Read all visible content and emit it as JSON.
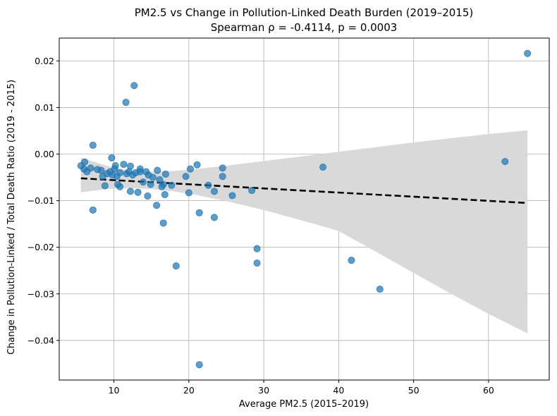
{
  "chart_data": {
    "type": "scatter",
    "title": "PM2.5 vs Change in Pollution-Linked Death Burden (2019–2015)",
    "subtitle": "Spearman ρ = -0.4114, p = 0.0003",
    "xlabel": "Average PM2.5 (2015–2019)",
    "ylabel": "Change in Pollution-Linked / Total Death Ratio (2019 - 2015)",
    "xlim": [
      2.7,
      68.1
    ],
    "ylim": [
      -0.0485,
      0.0249
    ],
    "x_ticks": [
      10,
      20,
      30,
      40,
      50,
      60
    ],
    "y_ticks": [
      0.02,
      0.01,
      0.0,
      -0.01,
      -0.02,
      -0.03,
      -0.04
    ],
    "x_tick_labels": [
      "10",
      "20",
      "30",
      "40",
      "50",
      "60"
    ],
    "y_tick_labels": [
      "0.02",
      "0.01",
      "0.00",
      "−0.01",
      "−0.02",
      "−0.03",
      "−0.04"
    ],
    "grid": true,
    "colors": {
      "points": "#1f77b4",
      "trend_line": "#000000",
      "confidence_band": "#d9d9d9",
      "grid": "#b0b0b0"
    },
    "trend_line": {
      "style": "dashed",
      "x": [
        5.6,
        65.2
      ],
      "y": [
        -0.0052,
        -0.0105
      ]
    },
    "confidence_band": {
      "x": [
        5.6,
        9.0,
        12.0,
        15.0,
        18.0,
        21.0,
        25.0,
        30.0,
        35.0,
        40.0,
        45.0,
        50.0,
        55.0,
        60.0,
        65.2
      ],
      "upper": [
        -0.0008,
        -0.0025,
        -0.0035,
        -0.0038,
        -0.0036,
        -0.0032,
        -0.0025,
        -0.0015,
        -0.0005,
        0.0005,
        0.0015,
        0.0025,
        0.0034,
        0.0043,
        0.0051
      ],
      "lower": [
        -0.0082,
        -0.0075,
        -0.0073,
        -0.0075,
        -0.008,
        -0.0088,
        -0.0101,
        -0.012,
        -0.0142,
        -0.0165,
        -0.021,
        -0.0255,
        -0.03,
        -0.0343,
        -0.0385
      ]
    },
    "points": [
      {
        "x": 5.6,
        "y": -0.0025
      },
      {
        "x": 6.0,
        "y": -0.0032
      },
      {
        "x": 6.1,
        "y": -0.0017
      },
      {
        "x": 6.4,
        "y": -0.0038
      },
      {
        "x": 6.9,
        "y": -0.003
      },
      {
        "x": 7.2,
        "y": 0.0019
      },
      {
        "x": 7.2,
        "y": -0.012
      },
      {
        "x": 7.8,
        "y": -0.0033
      },
      {
        "x": 8.3,
        "y": -0.0035
      },
      {
        "x": 8.5,
        "y": -0.0048
      },
      {
        "x": 8.8,
        "y": -0.0068
      },
      {
        "x": 9.1,
        "y": -0.0042
      },
      {
        "x": 9.5,
        "y": -0.0038
      },
      {
        "x": 9.7,
        "y": -0.0008
      },
      {
        "x": 9.8,
        "y": -0.0045
      },
      {
        "x": 10.1,
        "y": -0.0032
      },
      {
        "x": 10.2,
        "y": -0.0025
      },
      {
        "x": 10.4,
        "y": -0.0048
      },
      {
        "x": 10.5,
        "y": -0.0065
      },
      {
        "x": 10.8,
        "y": -0.007
      },
      {
        "x": 10.8,
        "y": -0.004
      },
      {
        "x": 11.3,
        "y": -0.0022
      },
      {
        "x": 11.6,
        "y": 0.0111
      },
      {
        "x": 11.7,
        "y": -0.0042
      },
      {
        "x": 12.0,
        "y": -0.0038
      },
      {
        "x": 12.2,
        "y": -0.008
      },
      {
        "x": 12.2,
        "y": -0.0026
      },
      {
        "x": 12.5,
        "y": -0.0045
      },
      {
        "x": 12.7,
        "y": 0.0147
      },
      {
        "x": 12.9,
        "y": -0.004
      },
      {
        "x": 13.2,
        "y": -0.0082
      },
      {
        "x": 13.5,
        "y": -0.0032
      },
      {
        "x": 13.5,
        "y": -0.0038
      },
      {
        "x": 13.9,
        "y": -0.006
      },
      {
        "x": 14.3,
        "y": -0.0038
      },
      {
        "x": 14.5,
        "y": -0.009
      },
      {
        "x": 14.6,
        "y": -0.0045
      },
      {
        "x": 14.9,
        "y": -0.0065
      },
      {
        "x": 15.2,
        "y": -0.005
      },
      {
        "x": 15.7,
        "y": -0.011
      },
      {
        "x": 15.8,
        "y": -0.0035
      },
      {
        "x": 16.1,
        "y": -0.0055
      },
      {
        "x": 16.4,
        "y": -0.007
      },
      {
        "x": 16.6,
        "y": -0.0148
      },
      {
        "x": 16.6,
        "y": -0.0065
      },
      {
        "x": 16.8,
        "y": -0.0087
      },
      {
        "x": 16.9,
        "y": -0.0043
      },
      {
        "x": 17.7,
        "y": -0.0067
      },
      {
        "x": 18.3,
        "y": -0.024
      },
      {
        "x": 19.6,
        "y": -0.0048
      },
      {
        "x": 20.0,
        "y": -0.0083
      },
      {
        "x": 20.2,
        "y": -0.0032
      },
      {
        "x": 21.1,
        "y": -0.0023
      },
      {
        "x": 21.4,
        "y": -0.0452
      },
      {
        "x": 21.4,
        "y": -0.0126
      },
      {
        "x": 22.6,
        "y": -0.0067
      },
      {
        "x": 23.4,
        "y": -0.0136
      },
      {
        "x": 23.4,
        "y": -0.008
      },
      {
        "x": 24.5,
        "y": -0.0048
      },
      {
        "x": 24.5,
        "y": -0.003
      },
      {
        "x": 25.8,
        "y": -0.0089
      },
      {
        "x": 28.4,
        "y": -0.0078
      },
      {
        "x": 29.1,
        "y": -0.0203
      },
      {
        "x": 29.1,
        "y": -0.0234
      },
      {
        "x": 37.9,
        "y": -0.0028
      },
      {
        "x": 41.7,
        "y": -0.0228
      },
      {
        "x": 45.5,
        "y": -0.029
      },
      {
        "x": 62.2,
        "y": -0.0016
      },
      {
        "x": 65.2,
        "y": 0.0216
      }
    ]
  }
}
